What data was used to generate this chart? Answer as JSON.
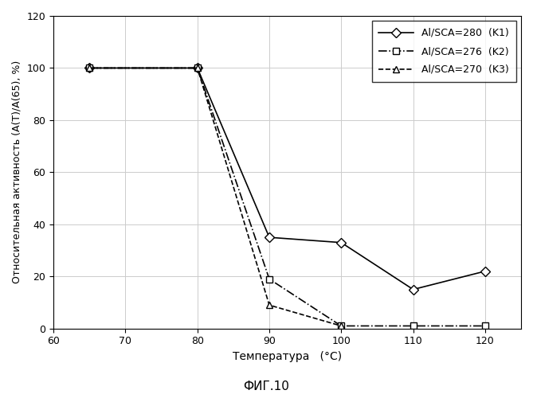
{
  "title": "ФИГ.10",
  "xlabel": "Температура   (°С)",
  "ylabel": "Относительная активность (A(T)/A(65), %)",
  "xlim": [
    60,
    125
  ],
  "ylim": [
    0,
    120
  ],
  "xticks": [
    60,
    70,
    80,
    90,
    100,
    110,
    120
  ],
  "yticks": [
    0,
    20,
    40,
    60,
    80,
    100,
    120
  ],
  "series": [
    {
      "label": "Al/SCA=280  (K1)",
      "x": [
        65,
        80,
        90,
        100,
        110,
        120
      ],
      "y": [
        100,
        100,
        35,
        33,
        15,
        22
      ],
      "linestyle": "-",
      "marker": "D",
      "color": "#000000",
      "markersize": 6,
      "linewidth": 1.2
    },
    {
      "label": "Al/SCA=276  (K2)",
      "x": [
        65,
        80,
        90,
        100,
        110,
        120
      ],
      "y": [
        100,
        100,
        19,
        1,
        1,
        1
      ],
      "linestyle": "-.",
      "marker": "s",
      "color": "#000000",
      "markersize": 6,
      "linewidth": 1.2
    },
    {
      "label": "Al/SCA=270  (K3)",
      "x": [
        65,
        80,
        90,
        100
      ],
      "y": [
        100,
        100,
        9,
        1
      ],
      "linestyle": "--",
      "marker": "^",
      "color": "#000000",
      "markersize": 6,
      "linewidth": 1.2
    }
  ],
  "background_color": "#ffffff",
  "legend_loc": "upper right",
  "grid": true
}
